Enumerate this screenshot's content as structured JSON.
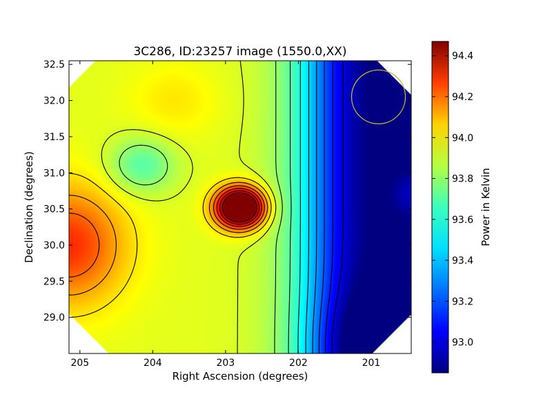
{
  "chart_data": {
    "type": "heatmap",
    "title": "3C286, ID:23257 image (1550.0,XX)",
    "xlabel": "Right Ascension (degrees)",
    "ylabel": "Declination (degrees)",
    "colorbar_label": "Power in Kelvin",
    "xlim": [
      205.15,
      200.45
    ],
    "ylim": [
      28.5,
      32.55
    ],
    "x_ticks": [
      205,
      204,
      203,
      202,
      201
    ],
    "x_tick_labels": [
      "205",
      "204",
      "203",
      "202",
      "201"
    ],
    "y_ticks": [
      29.0,
      29.5,
      30.0,
      30.5,
      31.0,
      31.5,
      32.0,
      32.5
    ],
    "y_tick_labels": [
      "29.0",
      "29.5",
      "30.0",
      "30.5",
      "31.0",
      "31.5",
      "32.0",
      "32.5"
    ],
    "colorbar_range": [
      92.85,
      94.47
    ],
    "colorbar_ticks": [
      93.0,
      93.2,
      93.4,
      93.6,
      93.8,
      94.0,
      94.2,
      94.4
    ],
    "colorbar_tick_labels": [
      "93.0",
      "93.2",
      "93.4",
      "93.6",
      "93.8",
      "94.0",
      "94.2",
      "94.4"
    ],
    "colormap": "jet",
    "contour_color": "#000000",
    "features": [
      {
        "kind": "peak",
        "ra": 202.8,
        "dec": 30.52,
        "value": 94.45
      },
      {
        "kind": "ridge",
        "ra": 205.1,
        "dec": 30.0,
        "value": 93.95
      },
      {
        "kind": "minimum",
        "ra": 200.6,
        "dec": 28.6,
        "value": 92.88
      },
      {
        "kind": "island",
        "ra": 204.2,
        "dec": 31.1,
        "value": 93.45
      },
      {
        "kind": "local-maximum",
        "ra": 200.5,
        "dec": 30.7,
        "value": 93.32
      }
    ],
    "beam_circle": {
      "ra": 200.9,
      "dec": 32.05,
      "color": "#c8b432"
    }
  }
}
